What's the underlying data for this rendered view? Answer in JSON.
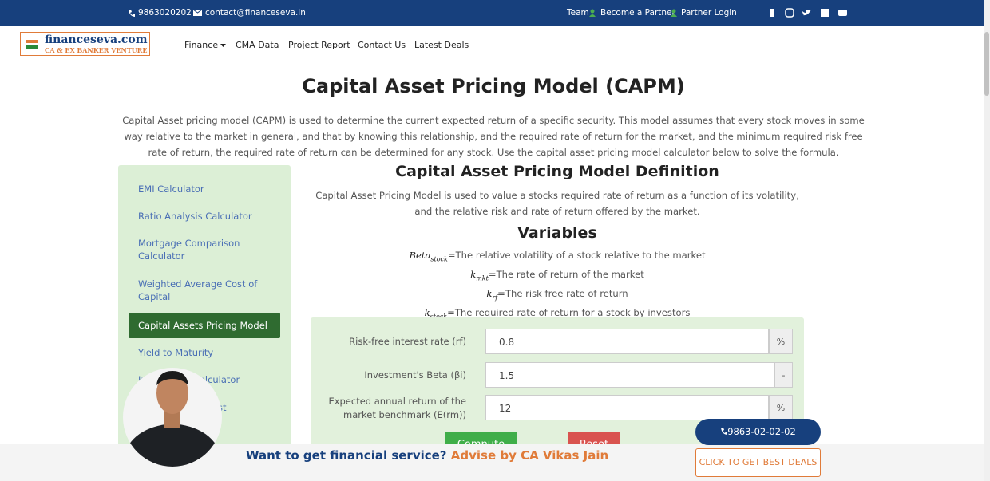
{
  "topbar": {
    "phone": "9863020202",
    "email": "contact@financeseva.in",
    "links": [
      "Team",
      "Become a Partner",
      "Partner Login"
    ]
  },
  "logo": {
    "name": "financeseva.com",
    "tagline": "CA & EX BANKER VENTURE"
  },
  "nav": [
    "Finance",
    "CMA Data",
    "Project Report",
    "Contact Us",
    "Latest Deals"
  ],
  "page": {
    "title": "Capital Asset Pricing Model (CAPM)",
    "intro": "Capital Asset pricing model (CAPM) is used to determine the current expected return of a specific security. This model assumes that every stock moves in some way relative to the market in general, and that by knowing this relationship, and the required rate of return for the market, and the minimum required risk free rate of return, the required rate of return can be determined for any stock. Use the capital asset pricing model calculator below to solve the formula."
  },
  "sidebar": [
    "EMI Calculator",
    "Ratio Analysis Calculator",
    "Mortgage Comparison Calculator",
    "Weighted Average Cost of Capital",
    "Capital Assets Pricing Model",
    "Yield to Maturity",
    "Investment Calculator",
    "Compound Interest Calculator"
  ],
  "definition": {
    "heading": "Capital Asset Pricing Model Definition",
    "text": "Capital Asset Pricing Model is used to value a stocks required rate of return as a function of its volatility, and the relative risk and rate of return offered by the market."
  },
  "variables": {
    "heading": "Variables",
    "items": [
      {
        "symbol": "Beta",
        "sub": "stock",
        "text": "=The relative volatility of a stock relative to the market"
      },
      {
        "symbol": "k",
        "sub": "mkt",
        "text": "=The rate of return of the market"
      },
      {
        "symbol": "k",
        "sub": "rf",
        "text": "=The risk free rate of return"
      },
      {
        "symbol": "k",
        "sub": "stock",
        "text": "=The required rate of return for a stock by investors"
      }
    ]
  },
  "form": {
    "fields": [
      {
        "label": "Risk-free interest rate (rf)",
        "value": "0.8",
        "unit": "%"
      },
      {
        "label": "Investment's Beta (βi)",
        "value": "1.5",
        "unit": "-"
      },
      {
        "label": "Expected annual return of the market benchmark (E(rm))",
        "value": "12",
        "unit": "%"
      }
    ],
    "buttons": [
      "Compute",
      "Reset"
    ]
  },
  "footer": {
    "question": "Want to get financial service?",
    "advisor": "Advise by CA Vikas Jain",
    "phone": "9863-02-02-02",
    "cta": "CLICK TO GET BEST DEALS"
  }
}
